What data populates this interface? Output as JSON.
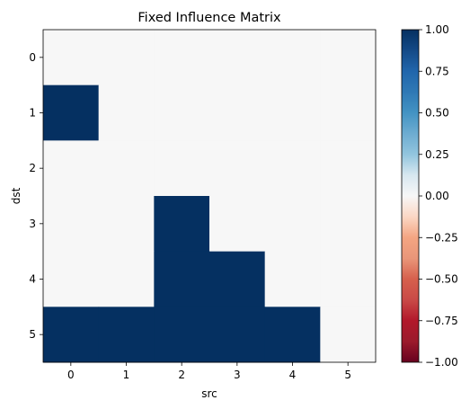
{
  "chart_data": {
    "type": "heatmap",
    "title": "Fixed Influence Matrix",
    "xlabel": "src",
    "ylabel": "dst",
    "x_categories": [
      "0",
      "1",
      "2",
      "3",
      "4",
      "5"
    ],
    "y_categories": [
      "0",
      "1",
      "2",
      "3",
      "4",
      "5"
    ],
    "matrix": [
      [
        0,
        0,
        0,
        0,
        0,
        0
      ],
      [
        1,
        0,
        0,
        0,
        0,
        0
      ],
      [
        0,
        0,
        0,
        0,
        0,
        0
      ],
      [
        0,
        0,
        1,
        0,
        0,
        0
      ],
      [
        0,
        0,
        1,
        1,
        0,
        0
      ],
      [
        1,
        1,
        1,
        1,
        1,
        0
      ]
    ],
    "colormap": "RdBu",
    "vmin": -1.0,
    "vmax": 1.0,
    "colorbar_ticks": [
      "1.00",
      "0.75",
      "0.50",
      "0.25",
      "0.00",
      "−0.25",
      "−0.50",
      "−0.75",
      "−1.00"
    ],
    "colorbar_tick_values": [
      1.0,
      0.75,
      0.5,
      0.25,
      0.0,
      -0.25,
      -0.5,
      -0.75,
      -1.0
    ],
    "colors": {
      "high": "#053061",
      "zero": "#f7f7f7",
      "low": "#67001f"
    }
  }
}
